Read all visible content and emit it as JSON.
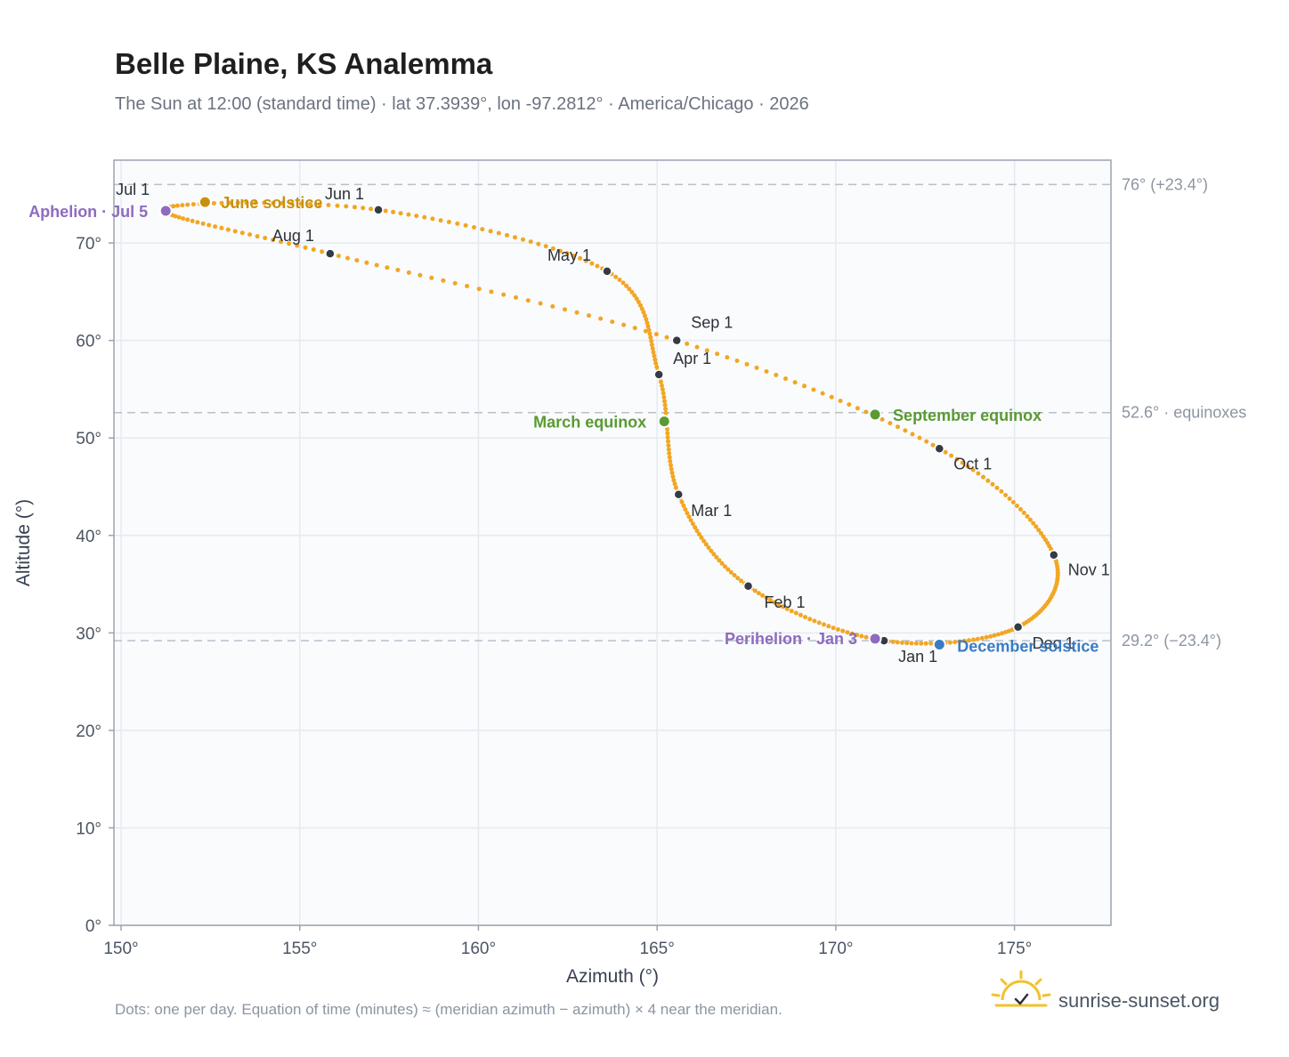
{
  "chart_data": {
    "type": "scatter",
    "title": "Belle Plaine, KS Analemma",
    "subtitle": "The Sun at 12:00 (standard time) · lat 37.3939°, lon -97.2812° · America/Chicago · 2026",
    "xlabel": "Azimuth (°)",
    "ylabel": "Altitude (°)",
    "xlim": [
      149.8,
      177.7
    ],
    "ylim": [
      0,
      78.5
    ],
    "x_ticks": [
      "150°",
      "155°",
      "160°",
      "165°",
      "170°",
      "175°"
    ],
    "x_tick_values": [
      150,
      155,
      160,
      165,
      170,
      175
    ],
    "y_ticks": [
      "0°",
      "10°",
      "20°",
      "30°",
      "40°",
      "50°",
      "60°",
      "70°"
    ],
    "y_tick_values": [
      0,
      10,
      20,
      30,
      40,
      50,
      60,
      70
    ],
    "grid": true,
    "reference_lines": [
      {
        "value": 76.0,
        "label": "76° (+23.4°)"
      },
      {
        "value": 52.6,
        "label": "52.6° · equinoxes"
      },
      {
        "value": 29.2,
        "label": "29.2° (−23.4°)"
      }
    ],
    "month_points": [
      {
        "label": "Jan 1",
        "azimuth": 171.35,
        "altitude": 29.2
      },
      {
        "label": "Feb 1",
        "azimuth": 167.55,
        "altitude": 34.8
      },
      {
        "label": "Mar 1",
        "azimuth": 165.6,
        "altitude": 44.2
      },
      {
        "label": "Apr 1",
        "azimuth": 165.05,
        "altitude": 56.5
      },
      {
        "label": "May 1",
        "azimuth": 163.6,
        "altitude": 67.1
      },
      {
        "label": "Jun 1",
        "azimuth": 157.2,
        "altitude": 73.4
      },
      {
        "label": "Jul 1",
        "azimuth": 151.2,
        "altitude": 73.5
      },
      {
        "label": "Aug 1",
        "azimuth": 155.85,
        "altitude": 68.9
      },
      {
        "label": "Sep 1",
        "azimuth": 165.55,
        "altitude": 60.0
      },
      {
        "label": "Oct 1",
        "azimuth": 172.9,
        "altitude": 48.9
      },
      {
        "label": "Nov 1",
        "azimuth": 176.1,
        "altitude": 38.0
      },
      {
        "label": "Dec 1",
        "azimuth": 175.1,
        "altitude": 30.6
      }
    ],
    "events": [
      {
        "label": "Aphelion · Jul 5",
        "azimuth": 151.25,
        "altitude": 73.3,
        "color": "#8e6bbf"
      },
      {
        "label": "June solstice",
        "azimuth": 152.35,
        "altitude": 74.2,
        "color": "#c9900c"
      },
      {
        "label": "March equinox",
        "azimuth": 165.2,
        "altitude": 51.7,
        "color": "#5a9a32"
      },
      {
        "label": "September equinox",
        "azimuth": 171.1,
        "altitude": 52.4,
        "color": "#5a9a32"
      },
      {
        "label": "Perihelion · Jan 3",
        "azimuth": 171.1,
        "altitude": 29.4,
        "color": "#8e6bbf"
      },
      {
        "label": "December solstice",
        "azimuth": 172.9,
        "altitude": 28.8,
        "color": "#3a7cc4"
      }
    ],
    "curve_color": "#f2a623"
  },
  "footnote": "Dots: one per day. Equation of time (minutes) ≈ (meridian azimuth − azimuth) × 4 near the meridian.",
  "brand": "sunrise-sunset.org",
  "colors": {
    "accent": "#f2a623",
    "plot_bg": "#f9fbfd",
    "grid": "#e6eaf0",
    "frame": "#9aa3ae",
    "point": "#343a46"
  }
}
